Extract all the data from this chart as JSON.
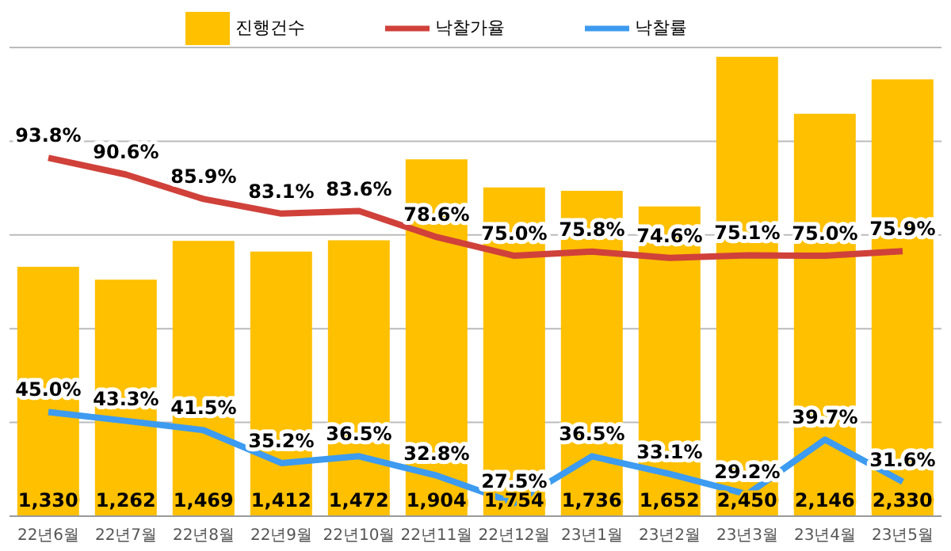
{
  "chart_data": {
    "type": "bar",
    "categories": [
      "22년6월",
      "22년7월",
      "22년8월",
      "22년9월",
      "22년10월",
      "22년11월",
      "22년12월",
      "23년1월",
      "23년2월",
      "23년3월",
      "23년4월",
      "23년5월"
    ],
    "series": [
      {
        "name": "진행건수",
        "color": "#ffc000",
        "values": [
          1330,
          1262,
          1469,
          1412,
          1472,
          1904,
          1754,
          1736,
          1652,
          2450,
          2146,
          2330
        ],
        "value_labels": [
          "1,330",
          "1,262",
          "1,469",
          "1,412",
          "1,472",
          "1,904",
          "1,754",
          "1,736",
          "1,652",
          "2,450",
          "2,146",
          "2,330"
        ]
      },
      {
        "name": "낙찰가율",
        "type": "line",
        "axis": "y2",
        "color": "#d0413a",
        "values": [
          93.8,
          90.6,
          85.9,
          83.1,
          83.6,
          78.6,
          75.0,
          75.8,
          74.6,
          75.1,
          75.0,
          75.9
        ],
        "value_labels": [
          "93.8%",
          "90.6%",
          "85.9%",
          "83.1%",
          "83.6%",
          "78.6%",
          "75.0%",
          "75.8%",
          "74.6%",
          "75.1%",
          "75.0%",
          "75.9%"
        ]
      },
      {
        "name": "낙찰률",
        "type": "line",
        "axis": "y2",
        "color": "#3d9bf0",
        "values": [
          45.0,
          43.3,
          41.5,
          35.2,
          36.5,
          32.8,
          27.5,
          36.5,
          33.1,
          29.2,
          39.7,
          31.6
        ],
        "value_labels": [
          "45.0%",
          "43.3%",
          "41.5%",
          "35.2%",
          "36.5%",
          "32.8%",
          "27.5%",
          "36.5%",
          "33.1%",
          "29.2%",
          "39.7%",
          "31.6%"
        ]
      }
    ],
    "ylim": [
      0,
      2500
    ],
    "yticks": [
      {
        "value": 0,
        "label": null
      },
      {
        "value": 500,
        "label": null
      },
      {
        "value": 1000,
        "label": null
      },
      {
        "value": 1500,
        "label": null
      },
      {
        "value": 2000,
        "label": null
      },
      {
        "value": 2500,
        "label": null
      }
    ],
    "y2lim": [
      25,
      115
    ],
    "grid": "y",
    "legend": "top",
    "marker": "none",
    "line_style": "solid",
    "tick_labels": "x"
  }
}
